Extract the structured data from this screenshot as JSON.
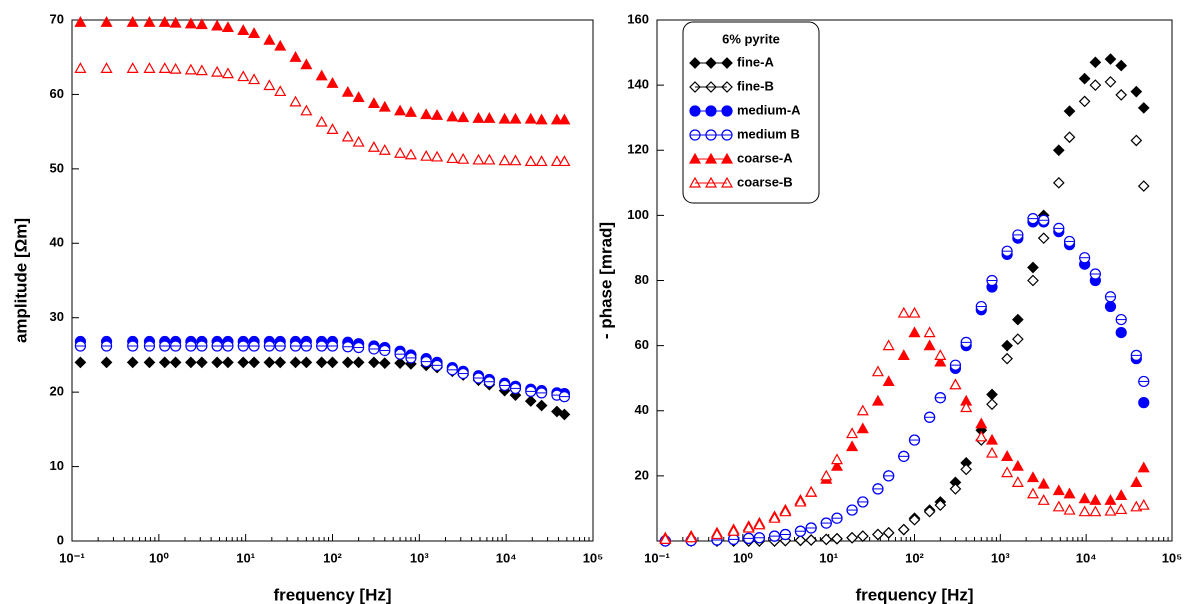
{
  "chart_data": [
    {
      "type": "scatter",
      "ylabel": "amplitude [Ωm]",
      "xlabel": "frequency [Hz]",
      "xscale": "log",
      "xlim": [
        0.1,
        100000
      ],
      "xticks": [
        {
          "value": 0.1,
          "label": "10⁻¹"
        },
        {
          "value": 1,
          "label": "10⁰"
        },
        {
          "value": 10,
          "label": "10¹"
        },
        {
          "value": 100,
          "label": "10²"
        },
        {
          "value": 1000,
          "label": "10³"
        },
        {
          "value": 10000,
          "label": "10⁴"
        },
        {
          "value": 100000,
          "label": "10⁵"
        }
      ],
      "ylim": [
        0,
        70
      ],
      "yticks": [
        0,
        10,
        20,
        30,
        40,
        50,
        60,
        70
      ],
      "x": [
        0.125,
        0.25,
        0.5,
        0.78,
        1.17,
        1.56,
        2.34,
        3.13,
        4.69,
        6.25,
        9.38,
        12.5,
        18.75,
        25,
        37.5,
        50,
        75,
        100,
        150,
        200,
        300,
        400,
        600,
        800,
        1200,
        1600,
        2400,
        3200,
        4800,
        6400,
        9600,
        12800,
        19200,
        25600,
        38400,
        46875
      ],
      "series": [
        {
          "name": "fine-A",
          "color": "#000000",
          "marker": "diamond",
          "filled": true,
          "values": [
            24,
            24,
            24,
            24,
            24,
            24,
            24,
            24,
            24,
            24,
            24,
            24,
            24,
            24,
            24,
            24,
            24,
            24,
            24,
            24,
            24,
            23.9,
            23.9,
            23.8,
            23.6,
            23.3,
            22.8,
            22.3,
            21.6,
            21,
            20.2,
            19.6,
            18.8,
            18.2,
            17.4,
            17
          ]
        },
        {
          "name": "medium-A",
          "color": "#0000ff",
          "marker": "circle",
          "filled": true,
          "values": [
            26.8,
            26.8,
            26.8,
            26.8,
            26.8,
            26.8,
            26.8,
            26.8,
            26.8,
            26.8,
            26.8,
            26.8,
            26.8,
            26.8,
            26.8,
            26.8,
            26.8,
            26.8,
            26.7,
            26.5,
            26.2,
            26,
            25.5,
            25,
            24.5,
            24,
            23.3,
            22.8,
            22.2,
            21.7,
            21.2,
            20.8,
            20.4,
            20.2,
            19.9,
            19.8
          ]
        },
        {
          "name": "medium B",
          "color": "#0000ff",
          "marker": "circle",
          "filled": false,
          "values": [
            26.2,
            26.2,
            26.2,
            26.2,
            26.2,
            26.2,
            26.2,
            26.2,
            26.2,
            26.2,
            26.2,
            26.2,
            26.2,
            26.2,
            26.2,
            26.2,
            26.2,
            26.2,
            26.1,
            26,
            25.8,
            25.6,
            25.1,
            24.6,
            24.1,
            23.6,
            23,
            22.5,
            21.9,
            21.4,
            20.9,
            20.5,
            20.1,
            19.9,
            19.6,
            19.4
          ]
        },
        {
          "name": "coarse-A",
          "color": "#ff0000",
          "marker": "triangle",
          "filled": true,
          "values": [
            69.7,
            69.7,
            69.7,
            69.7,
            69.7,
            69.6,
            69.5,
            69.4,
            69.2,
            69,
            68.6,
            68.2,
            67.3,
            66.5,
            65,
            64,
            62.5,
            61.5,
            60.3,
            59.6,
            58.8,
            58.3,
            57.8,
            57.6,
            57.3,
            57.2,
            57,
            56.9,
            56.8,
            56.8,
            56.7,
            56.7,
            56.7,
            56.6,
            56.6,
            56.6
          ]
        },
        {
          "name": "coarse-B",
          "color": "#ff0000",
          "marker": "triangle",
          "filled": false,
          "values": [
            63.5,
            63.5,
            63.5,
            63.5,
            63.5,
            63.4,
            63.3,
            63.2,
            63,
            62.8,
            62.4,
            62,
            61.2,
            60.4,
            59,
            57.8,
            56.3,
            55.3,
            54.3,
            53.6,
            52.9,
            52.5,
            52.1,
            51.9,
            51.7,
            51.6,
            51.4,
            51.3,
            51.2,
            51.2,
            51.1,
            51.1,
            51,
            51,
            51,
            51
          ]
        }
      ]
    },
    {
      "type": "scatter",
      "ylabel": "- phase [mrad]",
      "xlabel": "frequency [Hz]",
      "xscale": "log",
      "legend_title": "6% pyrite",
      "legend": "upper left",
      "xlim": [
        0.1,
        100000
      ],
      "xticks": [
        {
          "value": 0.1,
          "label": "10⁻¹"
        },
        {
          "value": 1,
          "label": "10⁰"
        },
        {
          "value": 10,
          "label": "10¹"
        },
        {
          "value": 100,
          "label": "10²"
        },
        {
          "value": 1000,
          "label": "10³"
        },
        {
          "value": 10000,
          "label": "10⁴"
        },
        {
          "value": 100000,
          "label": "10⁵"
        }
      ],
      "ylim": [
        0,
        160
      ],
      "yticks": [
        20,
        40,
        60,
        80,
        100,
        120,
        140,
        160
      ],
      "x": [
        0.125,
        0.25,
        0.5,
        0.78,
        1.17,
        1.56,
        2.34,
        3.13,
        4.69,
        6.25,
        9.38,
        12.5,
        18.75,
        25,
        37.5,
        50,
        75,
        100,
        150,
        200,
        300,
        400,
        600,
        800,
        1200,
        1600,
        2400,
        3200,
        4800,
        6400,
        9600,
        12800,
        19200,
        25600,
        38400,
        46875
      ],
      "series": [
        {
          "name": "fine-A",
          "color": "#000000",
          "marker": "diamond",
          "filled": true,
          "values": [
            0,
            0,
            0,
            0,
            0,
            0,
            0,
            0.1,
            0.2,
            0.3,
            0.5,
            0.7,
            1,
            1.5,
            2,
            2.5,
            3.5,
            7,
            9.5,
            12,
            18,
            24,
            34,
            45,
            60,
            68,
            84,
            100,
            120,
            132,
            142,
            147,
            148,
            146,
            138,
            133
          ]
        },
        {
          "name": "fine-B",
          "color": "#000000",
          "marker": "diamond",
          "filled": false,
          "values": [
            0,
            0,
            0,
            0,
            0,
            0,
            0,
            0.1,
            0.2,
            0.3,
            0.5,
            0.7,
            1,
            1.5,
            2,
            2.5,
            3.5,
            6.5,
            9,
            11,
            16,
            22,
            31,
            42,
            56,
            62,
            80,
            93,
            110,
            124,
            135,
            140,
            141,
            137,
            123,
            109
          ]
        },
        {
          "name": "medium-A",
          "color": "#0000ff",
          "marker": "circle",
          "filled": true,
          "values": [
            0,
            0.1,
            0.3,
            0.5,
            0.8,
            1,
            1.5,
            2,
            3,
            4,
            5.5,
            7,
            9.5,
            12,
            16,
            20,
            26,
            31,
            38,
            44,
            53,
            60,
            71,
            78,
            88,
            93,
            98,
            98,
            95,
            91,
            85,
            80,
            72,
            64,
            56,
            42.5
          ]
        },
        {
          "name": "medium B",
          "color": "#0000ff",
          "marker": "circle",
          "filled": false,
          "values": [
            0,
            0.1,
            0.3,
            0.5,
            0.8,
            1,
            1.5,
            2,
            3,
            4,
            5.5,
            7,
            9.5,
            12,
            16,
            20,
            26,
            31,
            38,
            44,
            54,
            61,
            72,
            80,
            89,
            94,
            99,
            98.5,
            96,
            92,
            87,
            82,
            75,
            68,
            57,
            49
          ]
        },
        {
          "name": "coarse-A",
          "color": "#ff0000",
          "marker": "triangle",
          "filled": true,
          "values": [
            1,
            1.5,
            2.5,
            3.5,
            4.5,
            5.5,
            7.5,
            9.5,
            12.5,
            15,
            19,
            23,
            29,
            34.5,
            43,
            49,
            57,
            64,
            60,
            55,
            48,
            43,
            36,
            31,
            26,
            23,
            19.5,
            17.5,
            15.5,
            14.5,
            13,
            12.5,
            12.5,
            14,
            18,
            22.5
          ]
        },
        {
          "name": "coarse-B",
          "color": "#ff0000",
          "marker": "triangle",
          "filled": false,
          "values": [
            0.5,
            1,
            2,
            3,
            4,
            5,
            7,
            9,
            12,
            15,
            20,
            25,
            33,
            40,
            52,
            60,
            70,
            70,
            64,
            57,
            48,
            41,
            32,
            27,
            21,
            18,
            14.5,
            12.5,
            10.5,
            9.5,
            9,
            9,
            9.2,
            9.7,
            10.5,
            11
          ]
        }
      ]
    }
  ]
}
